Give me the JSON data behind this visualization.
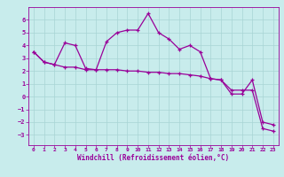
{
  "xlabel": "Windchill (Refroidissement éolien,°C)",
  "xlim": [
    -0.5,
    23.5
  ],
  "ylim": [
    -3.8,
    7.0
  ],
  "yticks": [
    -3,
    -2,
    -1,
    0,
    1,
    2,
    3,
    4,
    5,
    6
  ],
  "xticks": [
    0,
    1,
    2,
    3,
    4,
    5,
    6,
    7,
    8,
    9,
    10,
    11,
    12,
    13,
    14,
    15,
    16,
    17,
    18,
    19,
    20,
    21,
    22,
    23
  ],
  "line_color": "#990099",
  "bg_color": "#c8ecec",
  "grid_color": "#a8d4d4",
  "line1_x": [
    0,
    1,
    2,
    3,
    4,
    5,
    6,
    7,
    8,
    9,
    10,
    11,
    12,
    13,
    14,
    15,
    16,
    17,
    18,
    19,
    20,
    21,
    22,
    23
  ],
  "line1_y": [
    3.5,
    2.7,
    2.5,
    4.2,
    4.0,
    2.2,
    2.1,
    4.3,
    5.0,
    5.2,
    5.2,
    6.5,
    5.0,
    4.5,
    3.7,
    4.0,
    3.5,
    1.4,
    1.3,
    0.2,
    0.2,
    1.3,
    -2.0,
    -2.2
  ],
  "line2_x": [
    0,
    1,
    2,
    3,
    4,
    5,
    6,
    7,
    8,
    9,
    10,
    11,
    12,
    13,
    14,
    15,
    16,
    17,
    18,
    19,
    20,
    21,
    22,
    23
  ],
  "line2_y": [
    3.5,
    2.7,
    2.5,
    2.3,
    2.3,
    2.1,
    2.1,
    2.1,
    2.1,
    2.0,
    2.0,
    1.9,
    1.9,
    1.8,
    1.8,
    1.7,
    1.6,
    1.4,
    1.3,
    0.5,
    0.5,
    0.5,
    -2.5,
    -2.7
  ]
}
